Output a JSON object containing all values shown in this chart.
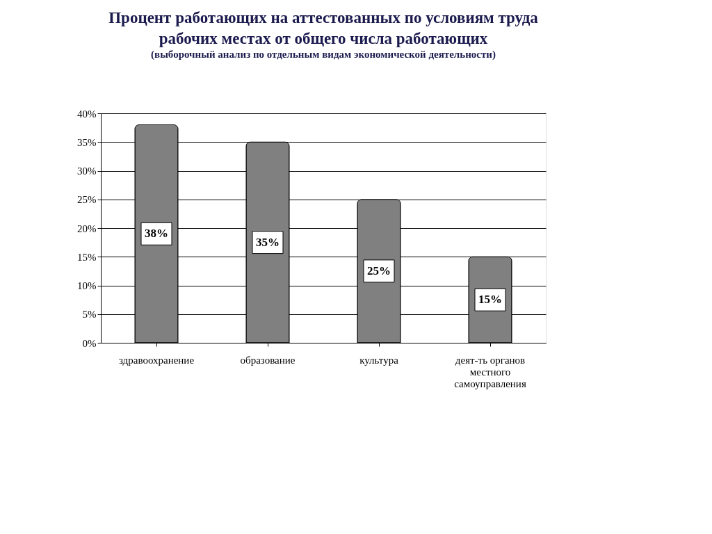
{
  "chart_data": {
    "type": "bar",
    "title": [
      "Процент работающих на аттестованных по условиям труда",
      "рабочих местах  от общего числа работающих"
    ],
    "subtitle": "(выборочный анализ по отдельным видам экономической деятельности)",
    "categories": [
      "здравоохранение",
      "образование",
      "культура",
      "деят-ть органов местного самоуправления"
    ],
    "values": [
      38,
      35,
      25,
      15
    ],
    "value_labels": [
      "38%",
      "35%",
      "25%",
      "15%"
    ],
    "color": "#808080",
    "ylim": [
      0,
      40
    ],
    "yticks": [
      {
        "value": 0,
        "label": "0%"
      },
      {
        "value": 5,
        "label": "5%"
      },
      {
        "value": 10,
        "label": "10%"
      },
      {
        "value": 15,
        "label": "15%"
      },
      {
        "value": 20,
        "label": "20%"
      },
      {
        "value": 25,
        "label": "25%"
      },
      {
        "value": 30,
        "label": "30%"
      },
      {
        "value": 35,
        "label": "35%"
      },
      {
        "value": 40,
        "label": "40%"
      }
    ],
    "grid": "y"
  }
}
